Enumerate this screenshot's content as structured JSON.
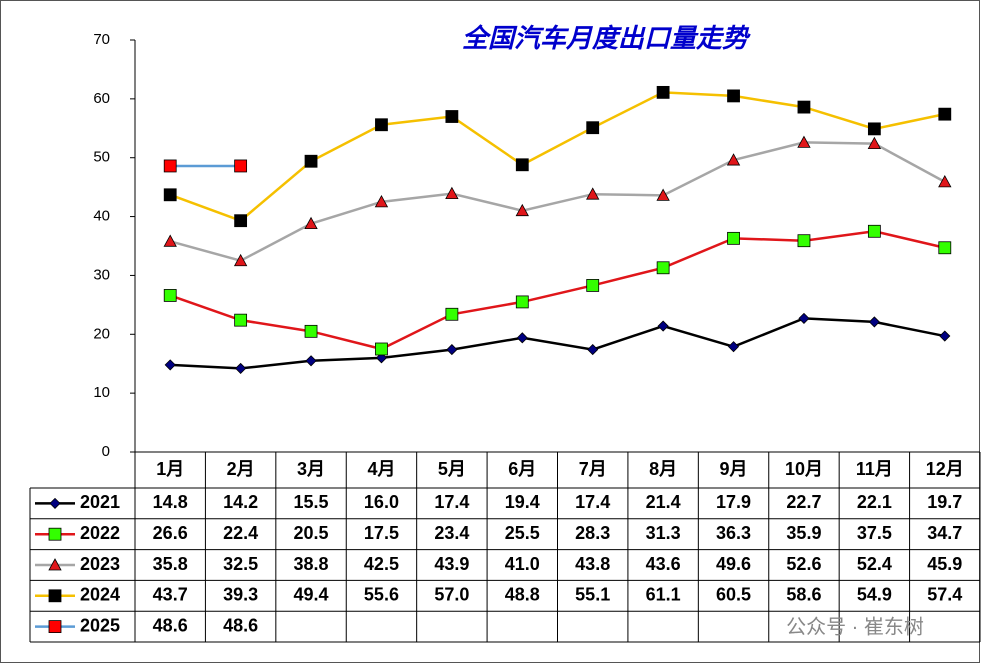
{
  "chart_data": {
    "type": "line",
    "title": "全国汽车月度出口量走势",
    "categories": [
      "1月",
      "2月",
      "3月",
      "4月",
      "5月",
      "6月",
      "7月",
      "8月",
      "9月",
      "10月",
      "11月",
      "12月"
    ],
    "ylim": [
      0,
      70
    ],
    "yticks": [
      0,
      10,
      20,
      30,
      40,
      50,
      60,
      70
    ],
    "grid": false,
    "series": [
      {
        "name": "2021",
        "color": "#000000",
        "marker_color": "#000080",
        "marker": "diamond",
        "values": [
          14.8,
          14.2,
          15.5,
          16.0,
          17.4,
          19.4,
          17.4,
          21.4,
          17.9,
          22.7,
          22.1,
          19.7
        ],
        "value_labels": [
          "14.8",
          "14.2",
          "15.5",
          "16.0",
          "17.4",
          "19.4",
          "17.4",
          "21.4",
          "17.9",
          "22.7",
          "22.1",
          "19.7"
        ]
      },
      {
        "name": "2022",
        "color": "#e0161a",
        "marker_color": "#33ff00",
        "marker": "square",
        "values": [
          26.6,
          22.4,
          20.5,
          17.5,
          23.4,
          25.5,
          28.3,
          31.3,
          36.3,
          35.9,
          37.5,
          34.7
        ],
        "value_labels": [
          "26.6",
          "22.4",
          "20.5",
          "17.5",
          "23.4",
          "25.5",
          "28.3",
          "31.3",
          "36.3",
          "35.9",
          "37.5",
          "34.7"
        ]
      },
      {
        "name": "2023",
        "color": "#a6a6a6",
        "marker_color": "#e0161a",
        "marker": "triangle",
        "values": [
          35.8,
          32.5,
          38.8,
          42.5,
          43.9,
          41.0,
          43.8,
          43.6,
          49.6,
          52.6,
          52.4,
          45.9
        ],
        "value_labels": [
          "35.8",
          "32.5",
          "38.8",
          "42.5",
          "43.9",
          "41.0",
          "43.8",
          "43.6",
          "49.6",
          "52.6",
          "52.4",
          "45.9"
        ]
      },
      {
        "name": "2024",
        "color": "#f5c000",
        "marker_color": "#000000",
        "marker": "square",
        "values": [
          43.7,
          39.3,
          49.4,
          55.6,
          57.0,
          48.8,
          55.1,
          61.1,
          60.5,
          58.6,
          54.9,
          57.4
        ],
        "value_labels": [
          "43.7",
          "39.3",
          "49.4",
          "55.6",
          "57.0",
          "48.8",
          "55.1",
          "61.1",
          "60.5",
          "58.6",
          "54.9",
          "57.4"
        ]
      },
      {
        "name": "2025",
        "color": "#5b9bd5",
        "marker_color": "#ff0000",
        "marker": "square",
        "values": [
          48.6,
          48.6,
          null,
          null,
          null,
          null,
          null,
          null,
          null,
          null,
          null,
          null
        ],
        "value_labels": [
          "48.6",
          "48.6",
          null,
          null,
          null,
          null,
          null,
          null,
          null,
          null,
          null,
          null
        ]
      }
    ],
    "watermark": "公众号 · 崔东树"
  }
}
